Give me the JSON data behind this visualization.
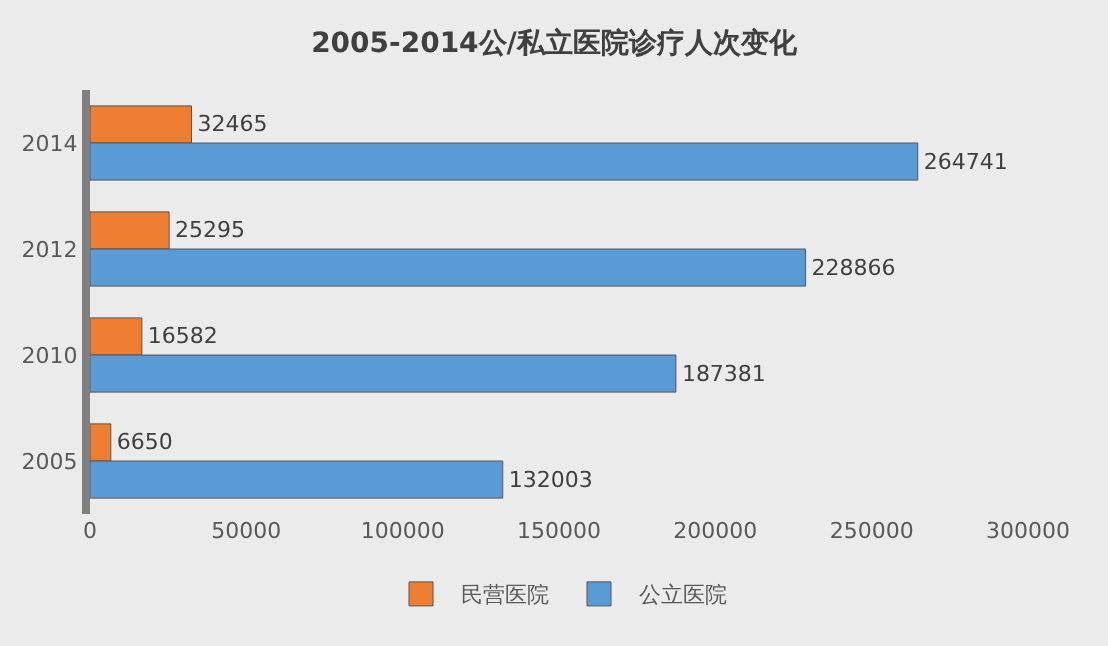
{
  "chart_data": {
    "type": "bar",
    "orientation": "horizontal",
    "title": "2005-2014公/私立医院诊疗人次变化",
    "categories": [
      "2014",
      "2012",
      "2010",
      "2005"
    ],
    "series": [
      {
        "name": "民营医院",
        "color": "#ed7d31",
        "values": [
          32465,
          25295,
          16582,
          6650
        ]
      },
      {
        "name": "公立医院",
        "color": "#5b9bd5",
        "values": [
          264741,
          228866,
          187381,
          132003
        ]
      }
    ],
    "xlim": [
      0,
      300000
    ],
    "xticks": [
      0,
      50000,
      100000,
      150000,
      200000,
      250000,
      300000
    ],
    "data_labels": true,
    "legend": "bottom",
    "grid": false
  }
}
